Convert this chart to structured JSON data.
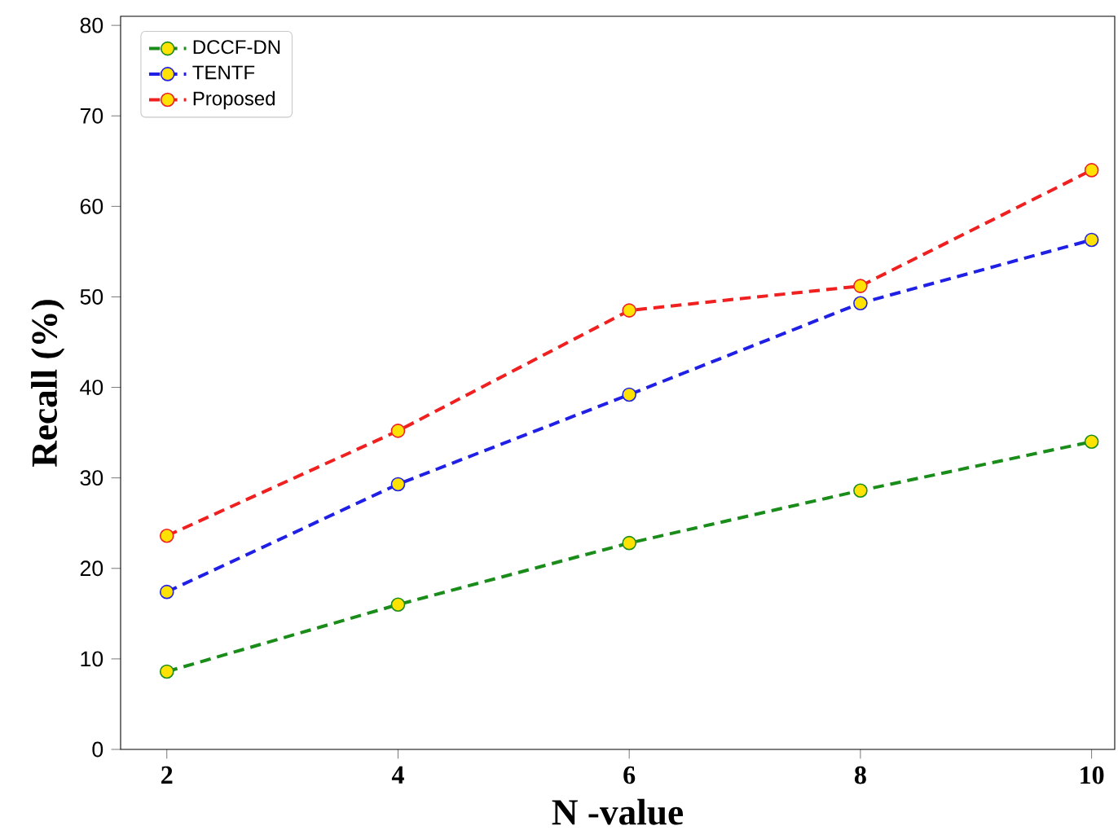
{
  "chart_data": {
    "type": "line",
    "xlabel": "N -value",
    "ylabel": "Recall (%)",
    "x": [
      2,
      4,
      6,
      8,
      10
    ],
    "series": [
      {
        "name": "DCCF-DN",
        "color": "#1a8c1a",
        "values": [
          8.6,
          16.0,
          22.8,
          28.6,
          34.0
        ]
      },
      {
        "name": "TENTF",
        "color": "#1f1fe6",
        "values": [
          17.4,
          29.3,
          39.2,
          49.3,
          56.3
        ]
      },
      {
        "name": "Proposed",
        "color": "#f02020",
        "values": [
          23.6,
          35.2,
          48.5,
          51.2,
          64.0
        ]
      }
    ],
    "xlim": [
      1.6,
      10.2
    ],
    "ylim": [
      0,
      81
    ],
    "xticks": [
      2,
      4,
      6,
      8,
      10
    ],
    "yticks": [
      0,
      10,
      20,
      30,
      40,
      50,
      60,
      70,
      80
    ],
    "grid": false,
    "legend": "top left",
    "marker": "circle",
    "line_style": "dashed"
  }
}
